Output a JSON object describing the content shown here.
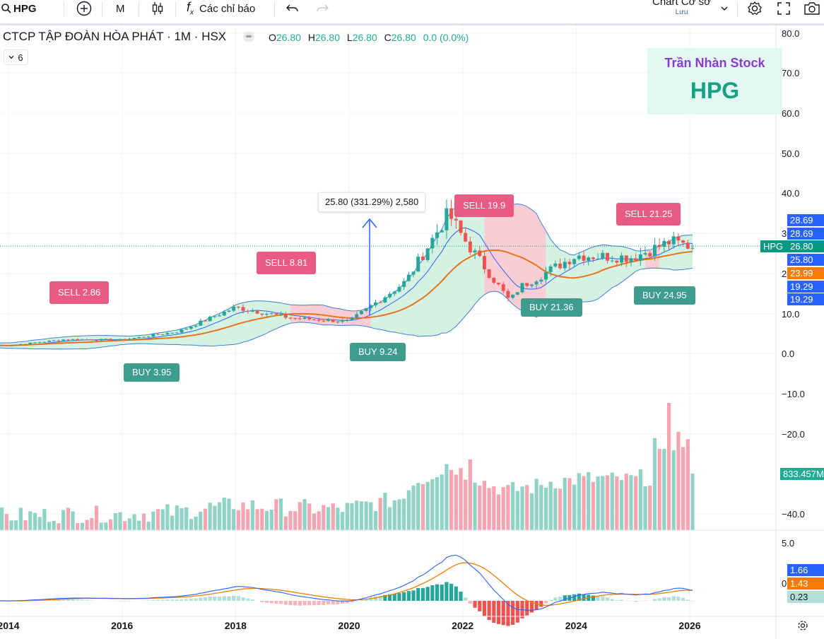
{
  "toolbar": {
    "symbol": "HPG",
    "interval": "M",
    "indicators_label": "Các chỉ báo",
    "layout_name": "Chart Cơ sở",
    "layout_save": "Lưu"
  },
  "legend": {
    "title": "CTCP TẬP ĐOÀN HÒA PHÁT · 1M · HSX",
    "o_label": "O",
    "o_value": "26.80",
    "h_label": "H",
    "h_value": "26.80",
    "l_label": "L",
    "l_value": "26.80",
    "c_label": "C",
    "c_value": "26.80",
    "change": "0.0 (0.0%)",
    "collapse_count": "6"
  },
  "watermark": {
    "author": "Trần Nhàn Stock",
    "ticker": "HPG"
  },
  "measure_label": "25.80 (331.29%) 2,580",
  "signals": [
    {
      "kind": "sell",
      "label": "SELL 2.86"
    },
    {
      "kind": "buy",
      "label": "BUY 3.95"
    },
    {
      "kind": "sell",
      "label": "SELL 8.81"
    },
    {
      "kind": "buy",
      "label": "BUY 9.24"
    },
    {
      "kind": "sell",
      "label": "SELL 19.9"
    },
    {
      "kind": "buy",
      "label": "BUY 21.36"
    },
    {
      "kind": "sell",
      "label": "SELL 21.25"
    },
    {
      "kind": "buy",
      "label": "BUY 24.95"
    }
  ],
  "price_axis": [
    "80.0",
    "70.0",
    "60.0",
    "50.0",
    "40.0",
    "30.0",
    "20.0",
    "10.0",
    "0.0",
    "−10.0",
    "−20.0",
    "−40.0"
  ],
  "price_labels": [
    {
      "text": "28.69",
      "color": "#2962ff"
    },
    {
      "text": "28.69",
      "color": "#2962ff"
    },
    {
      "text": "HPG",
      "color": "#089981"
    },
    {
      "text": "26.80",
      "color": "#089981"
    },
    {
      "text": "25.80",
      "color": "#2962ff"
    },
    {
      "text": "23.99",
      "color": "#f57c00"
    },
    {
      "text": "19.29",
      "color": "#2962ff"
    },
    {
      "text": "19.29",
      "color": "#2962ff"
    }
  ],
  "volume_label": "833.457M",
  "macd_axis": [
    "5.0",
    "0.0"
  ],
  "macd_labels": [
    {
      "text": "1.66",
      "color": "#2962ff"
    },
    {
      "text": "1.43",
      "color": "#f57c00"
    },
    {
      "text": "0.23",
      "color": "#b2dfdb"
    }
  ],
  "time_axis": [
    "2014",
    "2016",
    "2018",
    "2020",
    "2022",
    "2024",
    "2026"
  ],
  "colors": {
    "up": "#26a69a",
    "down": "#ef5350",
    "sell": "#e95a84",
    "buy": "#3f9d8e",
    "bb_fill_up": "#cdeedd",
    "bb_fill_down": "#f7c6cc"
  },
  "chart_data": {
    "type": "candlestick",
    "interval": "1M",
    "x_range": [
      "2014",
      "2026"
    ],
    "y_range": [
      -45,
      82
    ],
    "close_approx": [
      {
        "date": "2014",
        "close": 2.0
      },
      {
        "date": "2015",
        "close": 3.5
      },
      {
        "date": "2016",
        "close": 3.4
      },
      {
        "date": "2017",
        "close": 5.5
      },
      {
        "date": "2018",
        "close": 11.5
      },
      {
        "date": "2019",
        "close": 8.8
      },
      {
        "date": "2020",
        "close": 8.0
      },
      {
        "date": "2021",
        "close": 18.0
      },
      {
        "date": "2021-10",
        "close": 35.0
      },
      {
        "date": "2022",
        "close": 29.0
      },
      {
        "date": "2022-11",
        "close": 13.0
      },
      {
        "date": "2023",
        "close": 16.5
      },
      {
        "date": "2024",
        "close": 24.5
      },
      {
        "date": "2025",
        "close": 24.0
      },
      {
        "date": "2025-09",
        "close": 28.0
      },
      {
        "date": "2026",
        "close": 26.8
      }
    ],
    "last": {
      "open": 26.8,
      "high": 26.8,
      "low": 26.8,
      "close": 26.8,
      "volume": "833.457M"
    },
    "bollinger": {
      "upper": 28.69,
      "basis": 23.99,
      "lower": 19.29
    },
    "macd": {
      "macd": 1.66,
      "signal": 1.43,
      "histogram": 0.23
    }
  }
}
